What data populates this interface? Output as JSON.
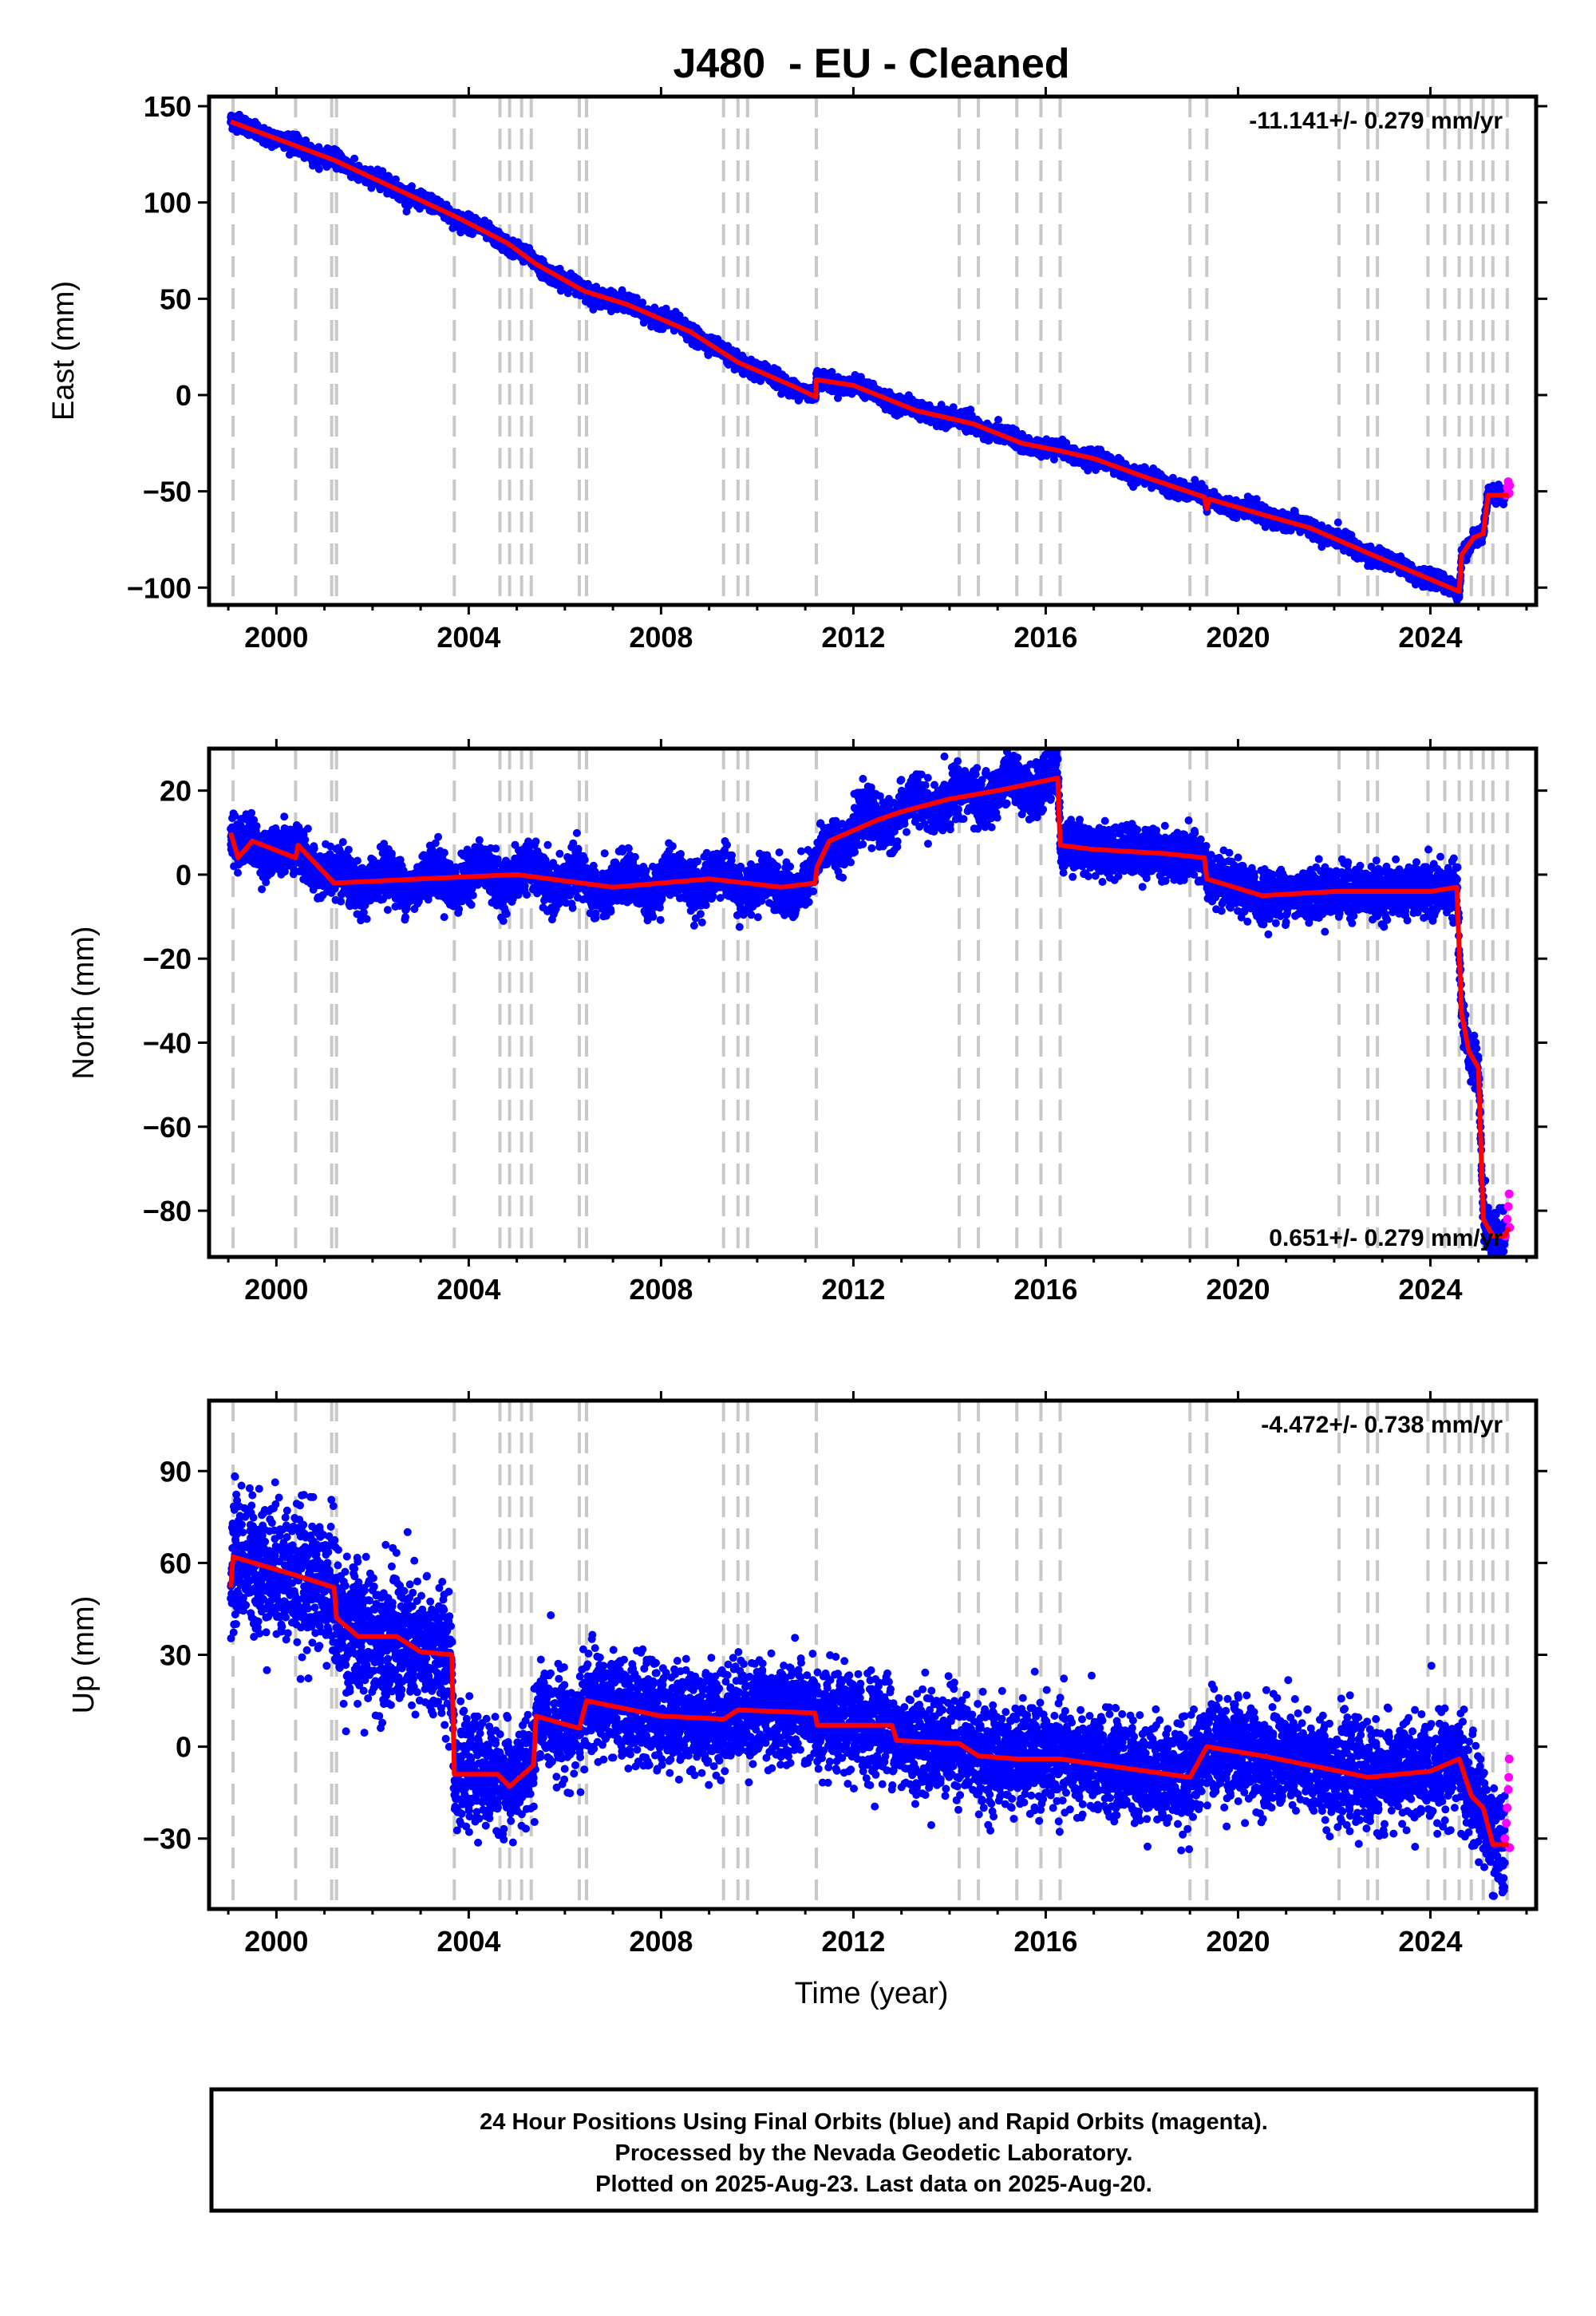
{
  "title": "J480  - EU - Cleaned",
  "xlabel": "Time (year)",
  "footer": {
    "line1": "24 Hour Positions Using Final Orbits (blue) and Rapid Orbits (magenta).",
    "line2": "Processed by the Nevada Geodetic Laboratory.",
    "line3": "Plotted on 2025-Aug-23. Last data on 2025-Aug-20."
  },
  "colors": {
    "final": "#0000ff",
    "rapid": "#ff00ff",
    "model": "#ff0000",
    "events": "#c8c8c8"
  },
  "chart_data": [
    {
      "type": "scatter",
      "component": "east",
      "ylabel": "East (mm)",
      "rate_label": "-11.141+/- 0.279 mm/yr",
      "rate_position": "top-right",
      "xlim": [
        1998.6,
        2026.2
      ],
      "ylim": [
        -109,
        155
      ],
      "xticks": [
        2000,
        2004,
        2008,
        2012,
        2016,
        2020,
        2024
      ],
      "yticks": [
        -100,
        -50,
        0,
        50,
        100,
        150
      ],
      "noise": 2.0,
      "model": [
        [
          1999.05,
          142
        ],
        [
          2001.2,
          122
        ],
        [
          2003.7,
          93
        ],
        [
          2004.8,
          79
        ],
        [
          2005.4,
          68
        ],
        [
          2006.4,
          54
        ],
        [
          2007.3,
          47
        ],
        [
          2008.6,
          33
        ],
        [
          2009.6,
          17
        ],
        [
          2010.8,
          4
        ],
        [
          2011.22,
          -1
        ],
        [
          2011.23,
          8
        ],
        [
          2012.0,
          5
        ],
        [
          2013.3,
          -8
        ],
        [
          2014.5,
          -15
        ],
        [
          2015.5,
          -25
        ],
        [
          2016.3,
          -29
        ],
        [
          2017.0,
          -33
        ],
        [
          2018.0,
          -42
        ],
        [
          2019.3,
          -53
        ],
        [
          2019.35,
          -59
        ],
        [
          2019.4,
          -54
        ],
        [
          2020.5,
          -62
        ],
        [
          2021.5,
          -69
        ],
        [
          2022.7,
          -82
        ],
        [
          2024.6,
          -102
        ],
        [
          2024.65,
          -83
        ],
        [
          2024.9,
          -74
        ],
        [
          2025.1,
          -72
        ],
        [
          2025.2,
          -52
        ],
        [
          2025.63,
          -52
        ]
      ],
      "rapid_points": [
        [
          2025.58,
          -52
        ],
        [
          2025.6,
          -48
        ],
        [
          2025.62,
          -45
        ],
        [
          2025.64,
          -51
        ],
        [
          2025.65,
          -47
        ]
      ],
      "events": [
        1999.1,
        2000.4,
        2001.15,
        2001.25,
        2003.7,
        2004.65,
        2004.85,
        2005.1,
        2005.3,
        2006.3,
        2006.45,
        2009.3,
        2009.6,
        2009.8,
        2011.23,
        2014.2,
        2014.6,
        2015.4,
        2015.9,
        2016.3,
        2019.0,
        2019.35,
        2022.1,
        2022.7,
        2022.9,
        2023.95,
        2024.3,
        2024.6,
        2024.85,
        2025.1,
        2025.3,
        2025.6
      ]
    },
    {
      "type": "scatter",
      "component": "north",
      "ylabel": "North (mm)",
      "rate_label": "0.651+/- 0.279 mm/yr",
      "rate_position": "bottom-right",
      "xlim": [
        1998.6,
        2026.2
      ],
      "ylim": [
        -91,
        30
      ],
      "xticks": [
        2000,
        2004,
        2008,
        2012,
        2016,
        2020,
        2024
      ],
      "yticks": [
        -80,
        -60,
        -40,
        -20,
        0,
        20
      ],
      "noise": 2.8,
      "model": [
        [
          1999.05,
          10
        ],
        [
          1999.2,
          4
        ],
        [
          1999.5,
          8
        ],
        [
          2000.4,
          4
        ],
        [
          2000.45,
          7
        ],
        [
          2001.2,
          -2
        ],
        [
          2003.0,
          -1
        ],
        [
          2005.0,
          0
        ],
        [
          2007.0,
          -3
        ],
        [
          2009.0,
          -1
        ],
        [
          2010.5,
          -3
        ],
        [
          2011.2,
          -2
        ],
        [
          2011.25,
          2
        ],
        [
          2011.5,
          8
        ],
        [
          2012.5,
          13
        ],
        [
          2013.0,
          15
        ],
        [
          2014.0,
          18
        ],
        [
          2015.0,
          20
        ],
        [
          2016.25,
          23
        ],
        [
          2016.3,
          7
        ],
        [
          2017.0,
          6
        ],
        [
          2018.5,
          5
        ],
        [
          2019.3,
          4
        ],
        [
          2019.35,
          -1
        ],
        [
          2020.5,
          -5
        ],
        [
          2022.0,
          -4
        ],
        [
          2024.0,
          -4
        ],
        [
          2024.55,
          -3
        ],
        [
          2024.65,
          -33
        ],
        [
          2024.8,
          -42
        ],
        [
          2025.0,
          -46
        ],
        [
          2025.1,
          -82
        ],
        [
          2025.3,
          -86
        ],
        [
          2025.55,
          -86
        ],
        [
          2025.63,
          -84
        ]
      ],
      "rapid_points": [
        [
          2025.56,
          -86
        ],
        [
          2025.6,
          -82
        ],
        [
          2025.62,
          -79
        ],
        [
          2025.64,
          -76
        ],
        [
          2025.65,
          -84
        ]
      ],
      "events": [
        1999.1,
        2000.4,
        2001.15,
        2001.25,
        2003.7,
        2004.65,
        2004.85,
        2005.1,
        2005.3,
        2006.3,
        2006.45,
        2009.3,
        2009.6,
        2009.8,
        2011.23,
        2014.2,
        2014.6,
        2015.4,
        2015.9,
        2016.3,
        2019.0,
        2019.35,
        2022.1,
        2022.7,
        2022.9,
        2023.95,
        2024.3,
        2024.6,
        2024.85,
        2025.1,
        2025.3,
        2025.6
      ]
    },
    {
      "type": "scatter",
      "component": "up",
      "ylabel": "Up (mm)",
      "rate_label": "-4.472+/- 0.738 mm/yr",
      "rate_position": "top-right",
      "xlim": [
        1998.6,
        2026.2
      ],
      "ylim": [
        -53,
        113
      ],
      "xticks": [
        2000,
        2004,
        2008,
        2012,
        2016,
        2020,
        2024
      ],
      "yticks": [
        -30,
        0,
        30,
        60,
        90
      ],
      "noise": 8.0,
      "model": [
        [
          1999.05,
          52
        ],
        [
          1999.1,
          62
        ],
        [
          2000.4,
          56
        ],
        [
          2001.2,
          52
        ],
        [
          2001.25,
          42
        ],
        [
          2001.7,
          36
        ],
        [
          2002.5,
          36
        ],
        [
          2003.0,
          31
        ],
        [
          2003.65,
          30
        ],
        [
          2003.7,
          -9
        ],
        [
          2004.6,
          -9
        ],
        [
          2004.85,
          -13
        ],
        [
          2005.35,
          -6
        ],
        [
          2005.4,
          10
        ],
        [
          2006.3,
          6
        ],
        [
          2006.45,
          15
        ],
        [
          2008.0,
          10
        ],
        [
          2009.3,
          9
        ],
        [
          2009.6,
          12
        ],
        [
          2011.2,
          11
        ],
        [
          2011.25,
          7
        ],
        [
          2012.8,
          7
        ],
        [
          2012.9,
          2
        ],
        [
          2014.2,
          1
        ],
        [
          2014.6,
          -3
        ],
        [
          2015.4,
          -4
        ],
        [
          2016.3,
          -4
        ],
        [
          2019.0,
          -10
        ],
        [
          2019.35,
          0
        ],
        [
          2020.5,
          -3
        ],
        [
          2022.1,
          -8
        ],
        [
          2022.7,
          -10
        ],
        [
          2024.0,
          -8
        ],
        [
          2024.6,
          -4
        ],
        [
          2024.85,
          -16
        ],
        [
          2025.1,
          -20
        ],
        [
          2025.3,
          -32
        ],
        [
          2025.63,
          -32
        ]
      ],
      "rapid_points": [
        [
          2025.55,
          -30
        ],
        [
          2025.58,
          -25
        ],
        [
          2025.6,
          -20
        ],
        [
          2025.62,
          -14
        ],
        [
          2025.63,
          -10
        ],
        [
          2025.64,
          -4
        ],
        [
          2025.65,
          -33
        ]
      ],
      "events": [
        1999.1,
        2000.4,
        2001.15,
        2001.25,
        2003.7,
        2004.65,
        2004.85,
        2005.1,
        2005.3,
        2006.3,
        2006.45,
        2009.3,
        2009.6,
        2009.8,
        2011.23,
        2014.2,
        2014.6,
        2015.4,
        2015.9,
        2016.3,
        2019.0,
        2019.35,
        2022.1,
        2022.7,
        2022.9,
        2023.95,
        2024.3,
        2024.6,
        2024.85,
        2025.1,
        2025.3,
        2025.6
      ]
    }
  ]
}
